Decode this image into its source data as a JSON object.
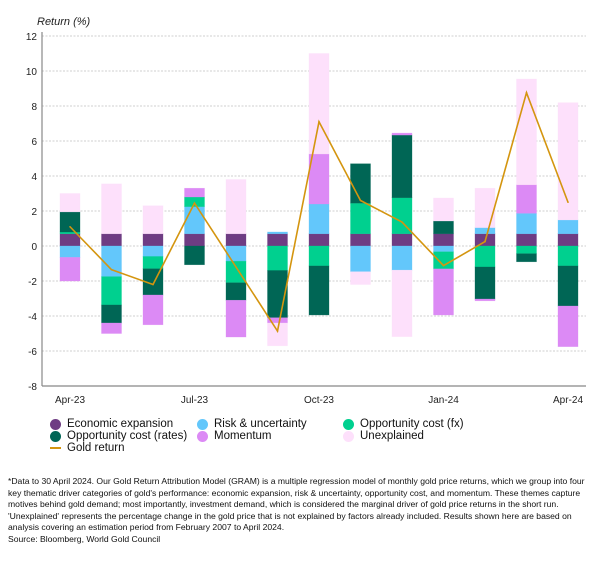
{
  "chart_data": {
    "type": "bar",
    "stacked": true,
    "ylabel": "Return (%)",
    "ylim": [
      -8,
      12
    ],
    "yticks": [
      12,
      10,
      8,
      6,
      4,
      2,
      0,
      -2,
      -4,
      -6,
      -8
    ],
    "grid": true,
    "categories": [
      "Apr-23",
      "May-23",
      "Jun-23",
      "Jul-23",
      "Aug-23",
      "Sep-23",
      "Oct-23",
      "Nov-23",
      "Dec-23",
      "Jan-24",
      "Feb-24",
      "Mar-24",
      "Apr-24"
    ],
    "xtick_labels": [
      "Apr-23",
      "Jul-23",
      "Oct-23",
      "Jan-24",
      "Apr-24"
    ],
    "series": [
      {
        "name": "Economic expansion",
        "color": "#6e3c83",
        "values": [
          0.7,
          0.7,
          0.7,
          0.7,
          0.7,
          0.7,
          0.7,
          0.7,
          0.7,
          0.7,
          0.7,
          0.7,
          0.7
        ]
      },
      {
        "name": "Risk & uncertainty",
        "color": "#63c7fb",
        "values": [
          -0.65,
          -1.75,
          -0.6,
          1.55,
          -0.87,
          0.1,
          1.7,
          -1.47,
          -1.38,
          -0.33,
          0.35,
          1.17,
          0.79
        ]
      },
      {
        "name": "Opportunity cost (fx)",
        "color": "#00d08f",
        "values": [
          0.1,
          -1.62,
          -0.7,
          0.55,
          -1.23,
          -1.4,
          -1.14,
          1.75,
          2.06,
          -0.98,
          -1.2,
          -0.44,
          -1.14
        ]
      },
      {
        "name": "Opportunity cost (rates)",
        "color": "#006655",
        "values": [
          1.15,
          -1.03,
          -1.5,
          -1.07,
          -1.0,
          -2.7,
          -2.8,
          2.25,
          3.58,
          0.73,
          -1.83,
          -0.46,
          -2.29
        ]
      },
      {
        "name": "Momentum",
        "color": "#dc8af5",
        "values": [
          -1.35,
          -0.6,
          -1.7,
          0.5,
          -2.1,
          -0.3,
          2.86,
          0,
          0.11,
          -2.63,
          -0.1,
          1.63,
          -2.32
        ]
      },
      {
        "name": "Unexplained",
        "color": "#fde0fb",
        "values": [
          1.05,
          2.85,
          1.6,
          0,
          3.1,
          -1.3,
          5.74,
          -0.73,
          -3.8,
          1.31,
          2.25,
          6.04,
          6.7
        ]
      }
    ],
    "line": {
      "name": "Gold return",
      "color": "#d4950f",
      "values": [
        1.1,
        -1.35,
        -2.2,
        2.45,
        -1.2,
        -4.86,
        7.1,
        2.6,
        1.37,
        -1.12,
        0.25,
        8.76,
        2.5
      ]
    },
    "legend_position": "bottom"
  },
  "footnote": {
    "text": "*Data to 30 April 2024. Our Gold Return Attribution Model (GRAM) is a multiple regression model of monthly gold price returns, which we group into four key thematic driver categories of gold's performance: economic expansion, risk & uncertainty, opportunity cost, and momentum. These themes capture motives behind gold demand; most importantly, investment demand, which is considered the marginal driver of gold price returns in the short run. 'Unexplained' represents the percentage change in the gold price that is not explained by factors already included. Results shown here are based on analysis covering an estimation period from February 2007 to April 2024.",
    "source": "Source: Bloomberg, World Gold Council"
  }
}
